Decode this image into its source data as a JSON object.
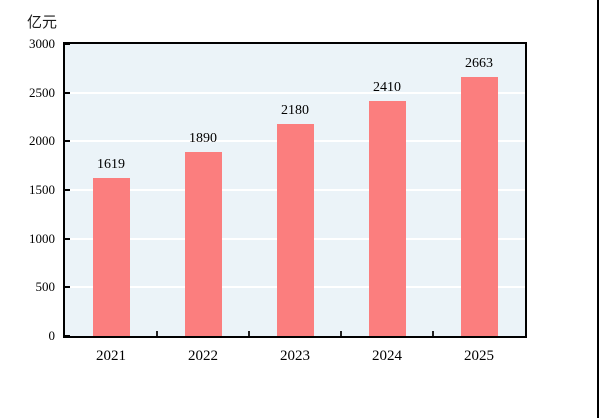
{
  "figure": {
    "unit_label": "亿元",
    "colors": {
      "bar": "#FB7E7E",
      "plot_background": "#EBF3F8",
      "gridline": "#FFFFFF",
      "axis_frame": "#000000",
      "text": "#000000",
      "right_rule": "#000000"
    }
  },
  "chart_data": {
    "type": "bar",
    "title": "",
    "categories": [
      "2021",
      "2022",
      "2023",
      "2024",
      "2025"
    ],
    "values": [
      1619,
      1890,
      2180,
      2410,
      2663
    ],
    "xlabel": "",
    "ylabel": "亿元",
    "ylim": [
      0,
      3000
    ],
    "ytick_step": 500,
    "ytick_labels": [
      "0",
      "500",
      "1000",
      "1500",
      "2000",
      "2500",
      "3000"
    ],
    "grid": true,
    "legend_position": "none",
    "value_labels_shown": true
  }
}
